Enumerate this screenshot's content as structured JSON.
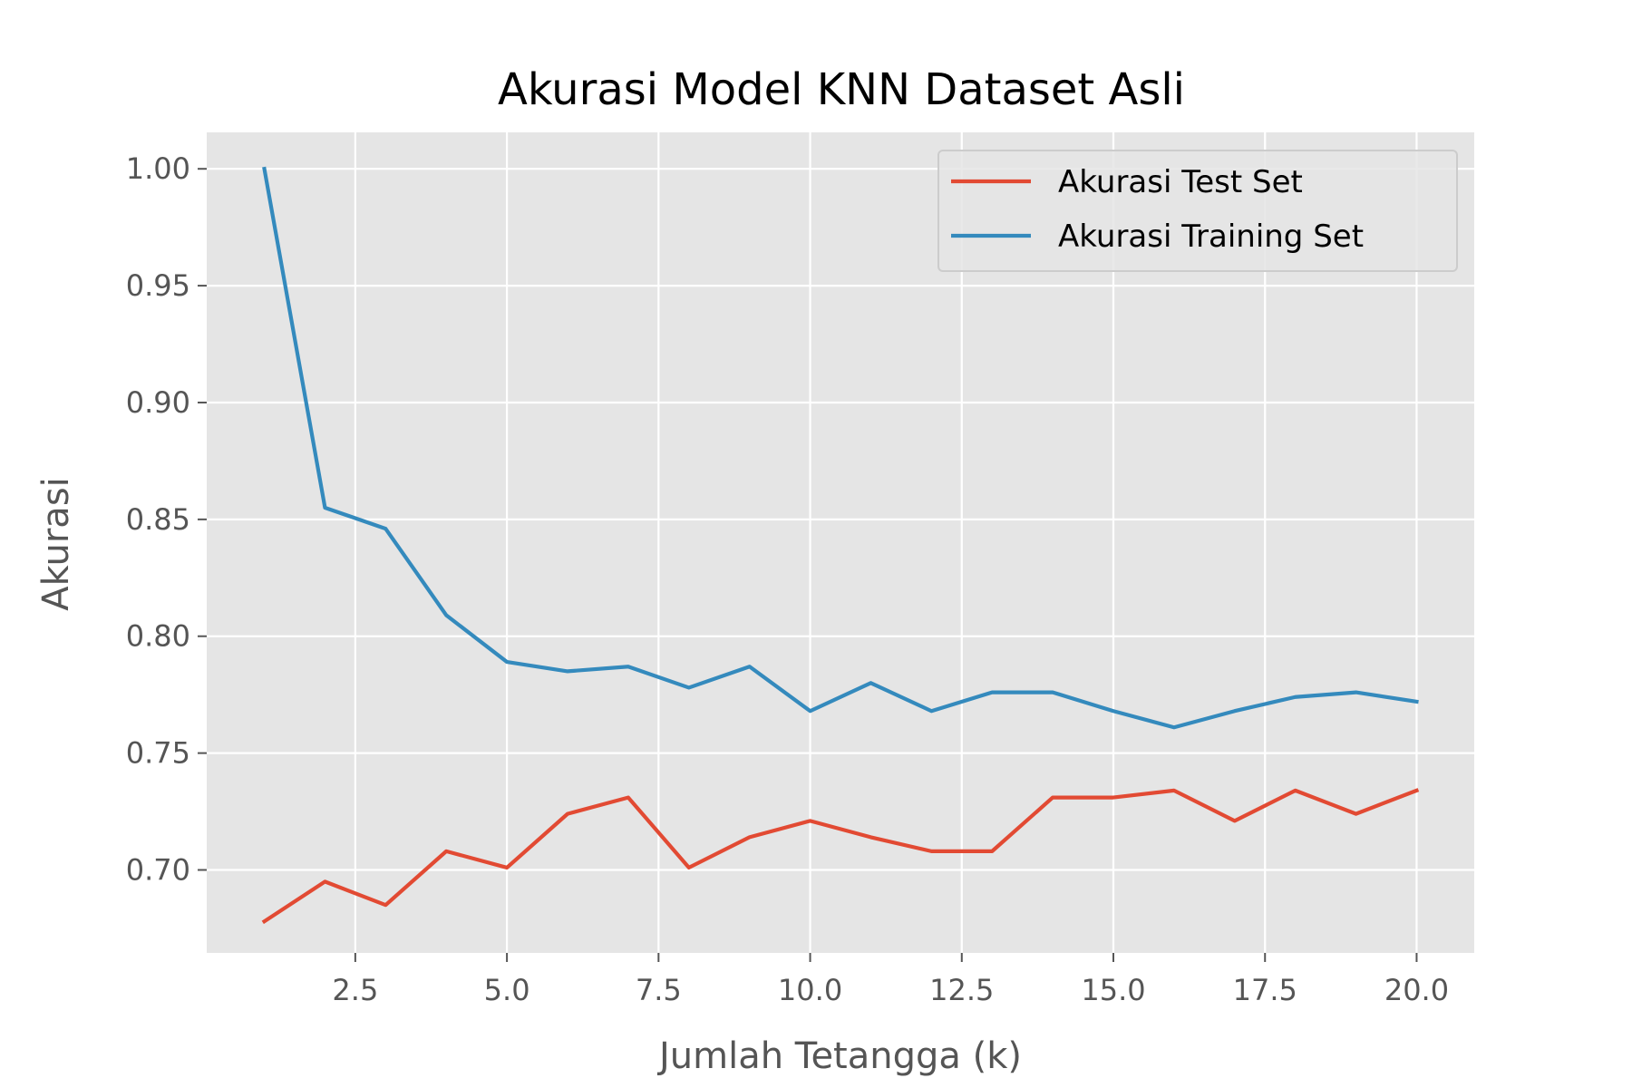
{
  "chart_data": {
    "type": "line",
    "title": "Akurasi Model KNN Dataset Asli",
    "xlabel": "Jumlah Tetangga (k)",
    "ylabel": "Akurasi",
    "xlim": [
      0.05,
      20.95
    ],
    "ylim": [
      0.6645,
      1.0156
    ],
    "xticks": [
      2.5,
      5.0,
      7.5,
      10.0,
      12.5,
      15.0,
      17.5,
      20.0
    ],
    "xtick_labels": [
      "2.5",
      "5.0",
      "7.5",
      "10.0",
      "12.5",
      "15.0",
      "17.5",
      "20.0"
    ],
    "yticks": [
      0.7,
      0.75,
      0.8,
      0.85,
      0.9,
      0.95,
      1.0
    ],
    "ytick_labels": [
      "0.70",
      "0.75",
      "0.80",
      "0.85",
      "0.90",
      "0.95",
      "1.00"
    ],
    "grid": true,
    "background": "#e5e5e5",
    "legend_position": "top-right",
    "x": [
      1,
      2,
      3,
      4,
      5,
      6,
      7,
      8,
      9,
      10,
      11,
      12,
      13,
      14,
      15,
      16,
      17,
      18,
      19,
      20
    ],
    "series": [
      {
        "name": "Akurasi Test Set",
        "color": "#e24a33",
        "values": [
          0.678,
          0.695,
          0.685,
          0.708,
          0.701,
          0.724,
          0.731,
          0.701,
          0.714,
          0.721,
          0.714,
          0.708,
          0.708,
          0.731,
          0.731,
          0.734,
          0.721,
          0.734,
          0.724,
          0.734
        ]
      },
      {
        "name": "Akurasi Training Set",
        "color": "#348abd",
        "values": [
          1.0,
          0.855,
          0.846,
          0.809,
          0.789,
          0.785,
          0.787,
          0.778,
          0.787,
          0.768,
          0.78,
          0.768,
          0.776,
          0.776,
          0.768,
          0.761,
          0.768,
          0.774,
          0.776,
          0.772
        ]
      }
    ]
  }
}
